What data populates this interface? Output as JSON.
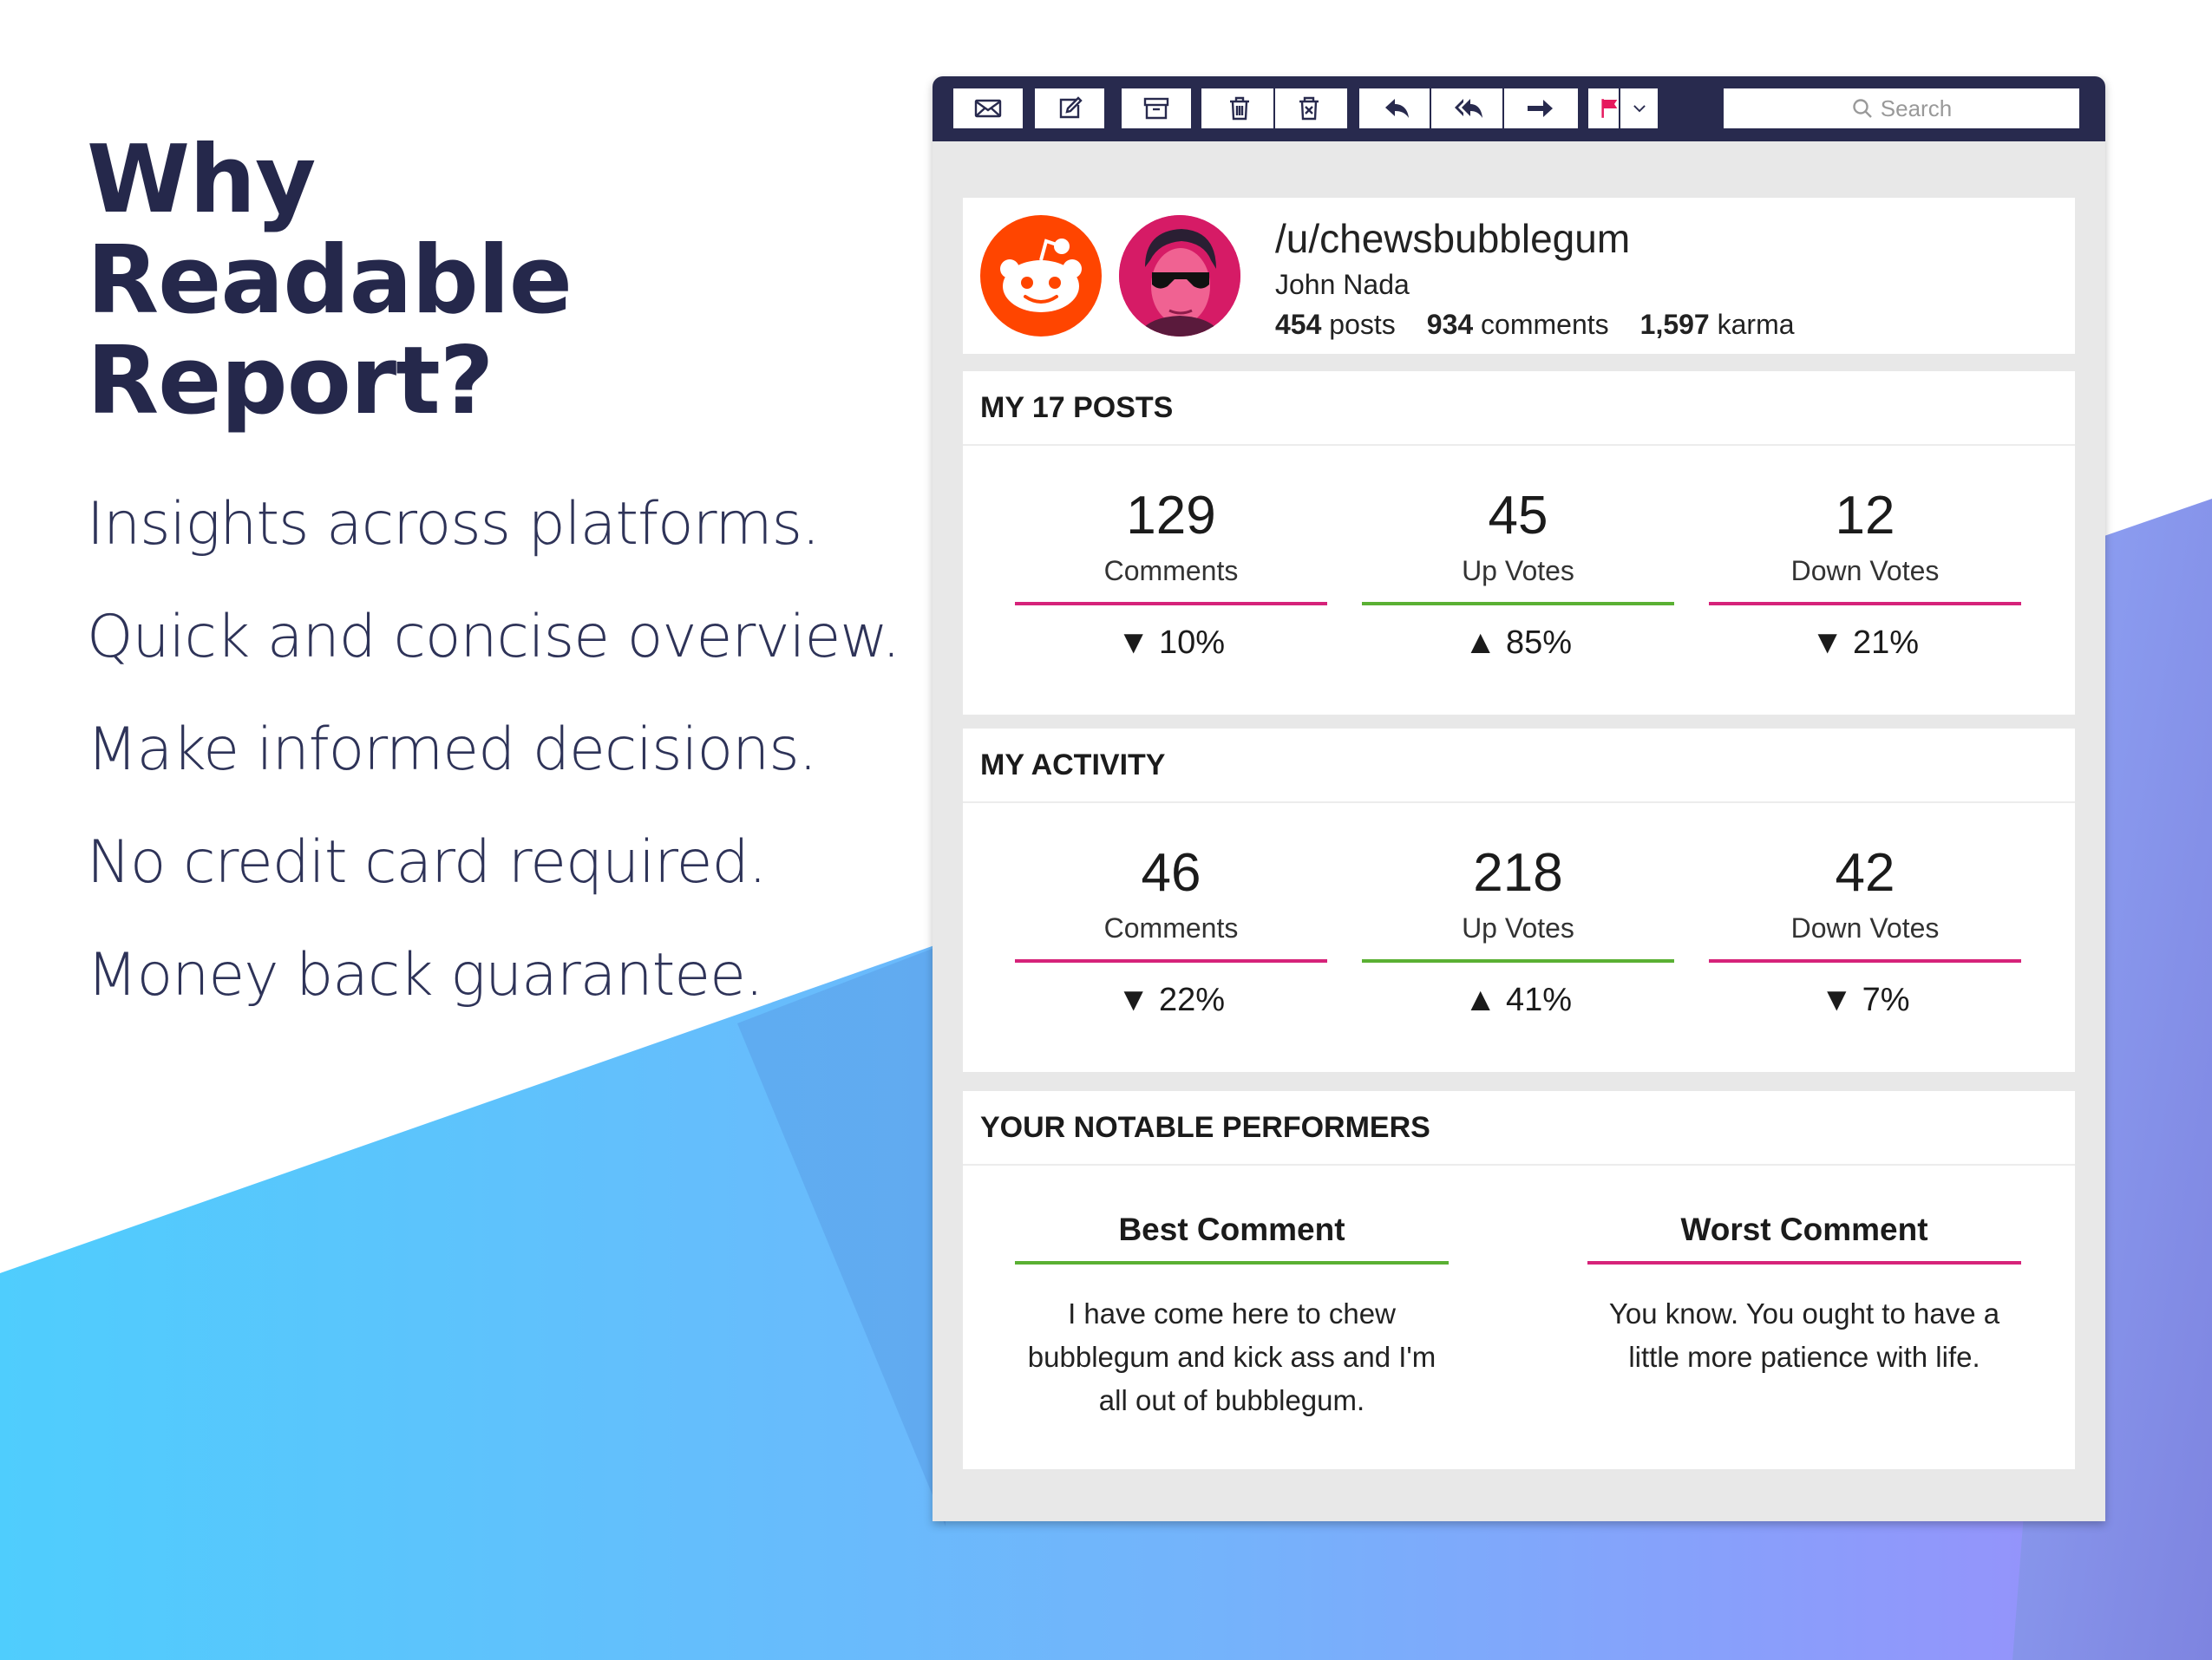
{
  "colors": {
    "navy": "#282a4e",
    "pink": "#d6237a",
    "green": "#5ab033",
    "reddit": "#ff4500",
    "flag": "#e6195e"
  },
  "hero": {
    "title_lines": [
      "Why",
      "Readable",
      "Report?"
    ],
    "features": [
      "Insights across platforms.",
      "Quick and concise overview.",
      "Make informed decisions.",
      "No credit card required.",
      "Money back guarantee."
    ]
  },
  "toolbar": {
    "icons": [
      "mail-icon",
      "compose-icon",
      "archive-icon",
      "trash-icon",
      "junk-icon",
      "reply-icon",
      "reply-all-icon",
      "forward-icon",
      "flag-icon",
      "chevron-down-icon"
    ],
    "search_placeholder": "Search"
  },
  "profile": {
    "username": "/u/chewsbubblegum",
    "real_name": "John Nada",
    "stats": [
      {
        "value": "454",
        "label": "posts"
      },
      {
        "value": "934",
        "label": "comments"
      },
      {
        "value": "1,597",
        "label": "karma"
      }
    ]
  },
  "posts": {
    "title": "MY 17 POSTS",
    "metrics": [
      {
        "value": "129",
        "label": "Comments",
        "change": "▼ 10%",
        "trend": "down"
      },
      {
        "value": "45",
        "label": "Up Votes",
        "change": "▲ 85%",
        "trend": "up"
      },
      {
        "value": "12",
        "label": "Down Votes",
        "change": "▼ 21%",
        "trend": "down"
      }
    ]
  },
  "activity": {
    "title": "MY ACTIVITY",
    "metrics": [
      {
        "value": "46",
        "label": "Comments",
        "change": "▼ 22%",
        "trend": "down"
      },
      {
        "value": "218",
        "label": "Up Votes",
        "change": "▲ 41%",
        "trend": "up"
      },
      {
        "value": "42",
        "label": "Down Votes",
        "change": "▼ 7%",
        "trend": "down"
      }
    ]
  },
  "performers": {
    "title": "YOUR NOTABLE PERFORMERS",
    "best": {
      "title": "Best Comment",
      "text": "I have come here to chew bubblegum and kick ass and I'm all out of bubblegum."
    },
    "worst": {
      "title": "Worst Comment",
      "text": "You know. You ought to have a little more patience with life."
    }
  }
}
